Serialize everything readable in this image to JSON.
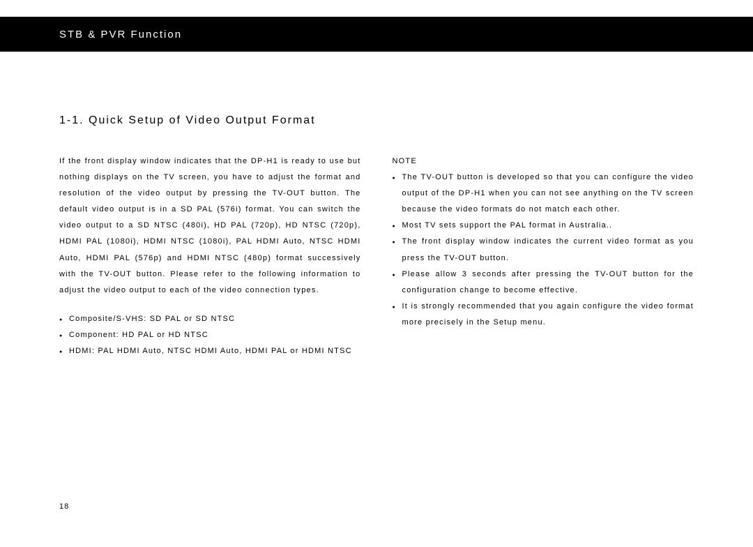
{
  "header": {
    "title": "STB & PVR Function"
  },
  "section": {
    "title": "1-1. Quick Setup of Video Output Format"
  },
  "left": {
    "paragraph": "If the front display window indicates that the DP-H1 is ready to use but nothing displays on the TV screen, you have to adjust the format and resolution of the video output by pressing the TV-OUT button. The default video output is in a SD PAL (576i) format. You can switch the video output to a SD NTSC (480i), HD PAL (720p), HD NTSC (720p), HDMI PAL (1080i), HDMI NTSC (1080i), PAL HDMI Auto, NTSC HDMI Auto, HDMI PAL (576p) and HDMI NTSC (480p) format successively with the TV-OUT button. Please refer to the following information to adjust the video output to each of the video connection types.",
    "bullets": [
      "Composite/S-VHS: SD PAL or SD NTSC",
      "Component: HD PAL or HD NTSC",
      "HDMI: PAL HDMI Auto, NTSC HDMI Auto, HDMI PAL or HDMI NTSC"
    ]
  },
  "right": {
    "note_label": "NOTE",
    "bullets": [
      "The TV-OUT button is developed so that you can configure the video output of the DP-H1 when you can not see anything on the TV screen because the video formats do not match each other.",
      "Most TV sets support the PAL format in Australia..",
      "The front display window indicates the current video format as you press the TV-OUT button.",
      "Please allow 3 seconds after pressing the TV-OUT button for the configuration change to become effective.",
      "It is strongly recommended that you again configure the video format more precisely in the Setup menu."
    ]
  },
  "page_number": "18"
}
